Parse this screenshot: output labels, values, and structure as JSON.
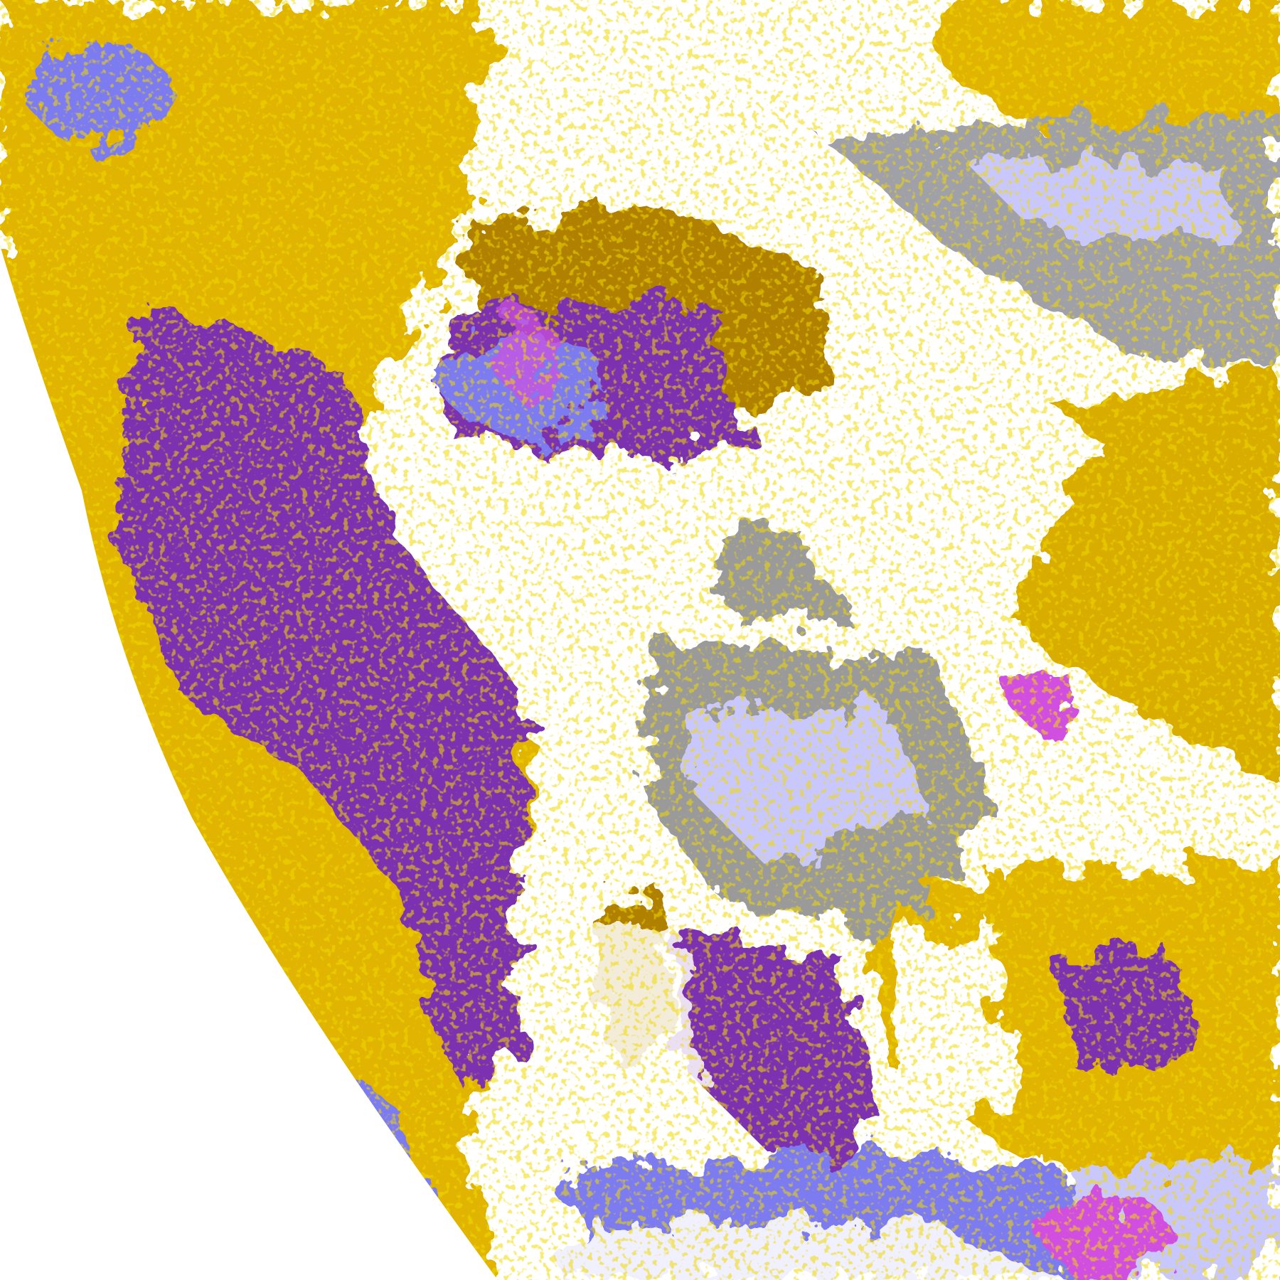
{
  "image": {
    "kind": "false-color satellite cloud-type classification, partial earth disk",
    "palette": {
      "space": "#ffffff",
      "clear_high": "#ffffff",
      "gold": "#e0b400",
      "dark_gold": "#b08000",
      "purple": "#7b33b0",
      "blue": "#7b7bf0",
      "lavender": "#f0f0ff",
      "light_blue": "#c8c8ff",
      "grey": "#9a9a9a",
      "magenta": "#d050e0"
    }
  }
}
